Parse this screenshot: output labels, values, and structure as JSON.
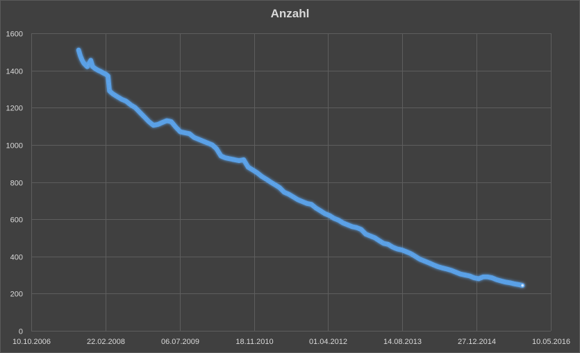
{
  "chart_data": {
    "type": "scatter",
    "title": "Anzahl",
    "xlabel": "",
    "ylabel": "",
    "x_axis_type": "date",
    "xlim": [
      "2006-10-10",
      "2016-05-10"
    ],
    "x_tick_labels": [
      "10.10.2006",
      "22.02.2008",
      "06.07.2009",
      "18.11.2010",
      "01.04.2012",
      "14.08.2013",
      "27.12.2014",
      "10.05.2016"
    ],
    "x_tick_dates": [
      "2006-10-10",
      "2008-02-22",
      "2009-07-06",
      "2010-11-18",
      "2012-04-01",
      "2013-08-14",
      "2014-12-27",
      "2016-05-10"
    ],
    "ylim": [
      0,
      1600
    ],
    "y_ticks": [
      0,
      200,
      400,
      600,
      800,
      1000,
      1200,
      1400,
      1600
    ],
    "grid": true,
    "legend": "none",
    "series": [
      {
        "color": "#5aa0e6",
        "points": [
          [
            "2007-08-25",
            1510
          ],
          [
            "2007-09-05",
            1480
          ],
          [
            "2007-09-15",
            1460
          ],
          [
            "2007-09-28",
            1440
          ],
          [
            "2007-10-10",
            1430
          ],
          [
            "2007-10-22",
            1420
          ],
          [
            "2007-11-05",
            1440
          ],
          [
            "2007-11-15",
            1455
          ],
          [
            "2007-11-28",
            1420
          ],
          [
            "2007-12-15",
            1410
          ],
          [
            "2008-01-05",
            1400
          ],
          [
            "2008-01-20",
            1395
          ],
          [
            "2008-02-10",
            1385
          ],
          [
            "2008-02-25",
            1380
          ],
          [
            "2008-03-10",
            1370
          ],
          [
            "2008-03-20",
            1290
          ],
          [
            "2008-04-10",
            1275
          ],
          [
            "2008-05-10",
            1260
          ],
          [
            "2008-06-10",
            1245
          ],
          [
            "2008-07-10",
            1235
          ],
          [
            "2008-08-10",
            1215
          ],
          [
            "2008-09-10",
            1200
          ],
          [
            "2008-10-10",
            1175
          ],
          [
            "2008-11-10",
            1150
          ],
          [
            "2008-12-10",
            1125
          ],
          [
            "2009-01-10",
            1105
          ],
          [
            "2009-02-10",
            1110
          ],
          [
            "2009-03-10",
            1120
          ],
          [
            "2009-04-10",
            1130
          ],
          [
            "2009-05-10",
            1125
          ],
          [
            "2009-06-10",
            1095
          ],
          [
            "2009-07-10",
            1070
          ],
          [
            "2009-08-10",
            1065
          ],
          [
            "2009-09-10",
            1060
          ],
          [
            "2009-10-10",
            1040
          ],
          [
            "2009-11-10",
            1030
          ],
          [
            "2009-12-10",
            1020
          ],
          [
            "2010-01-10",
            1010
          ],
          [
            "2010-02-10",
            1000
          ],
          [
            "2010-03-10",
            980
          ],
          [
            "2010-04-10",
            940
          ],
          [
            "2010-05-10",
            930
          ],
          [
            "2010-06-10",
            925
          ],
          [
            "2010-07-10",
            920
          ],
          [
            "2010-08-10",
            915
          ],
          [
            "2010-09-10",
            920
          ],
          [
            "2010-10-10",
            880
          ],
          [
            "2010-11-10",
            865
          ],
          [
            "2010-12-10",
            850
          ],
          [
            "2011-01-10",
            830
          ],
          [
            "2011-02-10",
            815
          ],
          [
            "2011-03-10",
            800
          ],
          [
            "2011-04-10",
            785
          ],
          [
            "2011-05-10",
            770
          ],
          [
            "2011-06-10",
            745
          ],
          [
            "2011-07-10",
            735
          ],
          [
            "2011-08-10",
            720
          ],
          [
            "2011-09-10",
            705
          ],
          [
            "2011-10-10",
            695
          ],
          [
            "2011-11-10",
            685
          ],
          [
            "2011-12-10",
            680
          ],
          [
            "2012-01-10",
            660
          ],
          [
            "2012-02-10",
            645
          ],
          [
            "2012-03-10",
            630
          ],
          [
            "2012-04-10",
            620
          ],
          [
            "2012-05-10",
            605
          ],
          [
            "2012-06-10",
            595
          ],
          [
            "2012-07-10",
            580
          ],
          [
            "2012-08-10",
            570
          ],
          [
            "2012-09-10",
            560
          ],
          [
            "2012-10-10",
            555
          ],
          [
            "2012-11-10",
            545
          ],
          [
            "2012-12-10",
            520
          ],
          [
            "2013-01-10",
            510
          ],
          [
            "2013-02-10",
            500
          ],
          [
            "2013-03-10",
            485
          ],
          [
            "2013-04-10",
            470
          ],
          [
            "2013-05-10",
            465
          ],
          [
            "2013-06-10",
            450
          ],
          [
            "2013-07-10",
            440
          ],
          [
            "2013-08-10",
            435
          ],
          [
            "2013-09-10",
            425
          ],
          [
            "2013-10-10",
            415
          ],
          [
            "2013-11-10",
            400
          ],
          [
            "2013-12-10",
            385
          ],
          [
            "2014-01-10",
            375
          ],
          [
            "2014-02-10",
            365
          ],
          [
            "2014-03-10",
            355
          ],
          [
            "2014-04-10",
            345
          ],
          [
            "2014-05-10",
            338
          ],
          [
            "2014-06-10",
            332
          ],
          [
            "2014-07-10",
            325
          ],
          [
            "2014-08-10",
            315
          ],
          [
            "2014-09-10",
            305
          ],
          [
            "2014-10-10",
            300
          ],
          [
            "2014-11-10",
            295
          ],
          [
            "2014-12-10",
            285
          ],
          [
            "2015-01-10",
            280
          ],
          [
            "2015-02-10",
            290
          ],
          [
            "2015-03-10",
            290
          ],
          [
            "2015-04-10",
            285
          ],
          [
            "2015-05-10",
            275
          ],
          [
            "2015-06-10",
            268
          ],
          [
            "2015-07-10",
            262
          ],
          [
            "2015-08-10",
            258
          ],
          [
            "2015-09-10",
            252
          ],
          [
            "2015-10-10",
            248
          ],
          [
            "2015-11-01",
            244
          ]
        ]
      }
    ]
  }
}
